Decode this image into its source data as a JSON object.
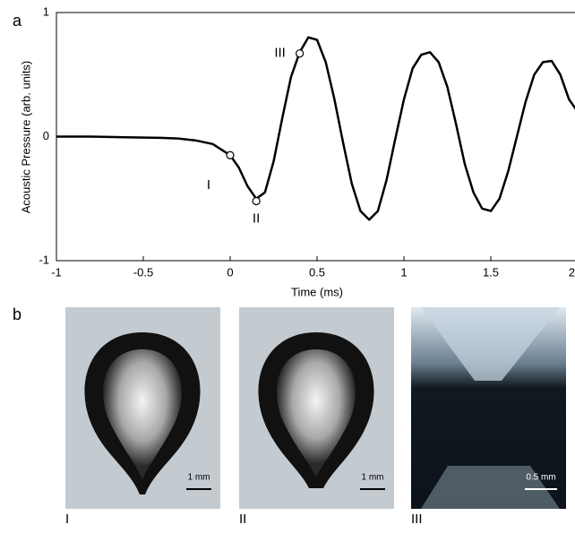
{
  "chart_data": {
    "type": "line",
    "panel_label": "a",
    "xlabel": "Time (ms)",
    "ylabel": "Acoustic Pressure (arb. units)",
    "xlim": [
      -1,
      2
    ],
    "ylim": [
      -1,
      1
    ],
    "xticks": [
      -1,
      -0.5,
      0,
      0.5,
      1,
      1.5,
      2
    ],
    "yticks": [
      -1,
      0,
      1
    ],
    "color": "#000000",
    "x": [
      -1,
      -0.8,
      -0.6,
      -0.4,
      -0.3,
      -0.2,
      -0.1,
      0,
      0.05,
      0.1,
      0.15,
      0.2,
      0.25,
      0.3,
      0.35,
      0.4,
      0.45,
      0.5,
      0.55,
      0.6,
      0.65,
      0.7,
      0.75,
      0.8,
      0.85,
      0.9,
      0.95,
      1.0,
      1.05,
      1.1,
      1.15,
      1.2,
      1.25,
      1.3,
      1.35,
      1.4,
      1.45,
      1.5,
      1.55,
      1.6,
      1.65,
      1.7,
      1.75,
      1.8,
      1.85,
      1.9,
      1.95,
      2.0
    ],
    "values": [
      0,
      0,
      -0.005,
      -0.01,
      -0.015,
      -0.03,
      -0.06,
      -0.15,
      -0.25,
      -0.4,
      -0.5,
      -0.45,
      -0.2,
      0.15,
      0.48,
      0.68,
      0.8,
      0.78,
      0.6,
      0.3,
      -0.05,
      -0.38,
      -0.6,
      -0.67,
      -0.6,
      -0.35,
      -0.02,
      0.3,
      0.55,
      0.66,
      0.68,
      0.6,
      0.4,
      0.1,
      -0.22,
      -0.45,
      -0.58,
      -0.6,
      -0.5,
      -0.28,
      0.0,
      0.28,
      0.5,
      0.6,
      0.61,
      0.5,
      0.3,
      0.2
    ],
    "points": [
      {
        "label": "I",
        "x": 0,
        "y": -0.15
      },
      {
        "label": "II",
        "x": 0.15,
        "y": -0.52
      },
      {
        "label": "III",
        "x": 0.4,
        "y": 0.67
      }
    ]
  },
  "images": {
    "panel_label": "b",
    "items": [
      {
        "label": "I",
        "scale": "1 mm"
      },
      {
        "label": "II",
        "scale": "1 mm"
      },
      {
        "label": "III",
        "scale": "0.5 mm"
      }
    ]
  }
}
